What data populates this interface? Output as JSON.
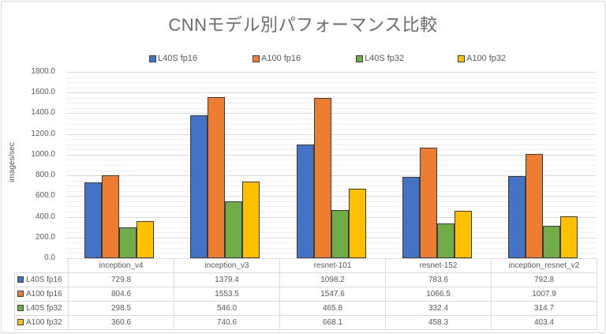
{
  "chart_data": {
    "type": "bar",
    "title": "CNNモデル別パフォーマンス比較",
    "xlabel": "",
    "ylabel": "images/sec",
    "ylim": [
      0,
      1800
    ],
    "yticks": [
      "0.0",
      "200.0",
      "400.0",
      "600.0",
      "800.0",
      "1000.0",
      "1200.0",
      "1400.0",
      "1600.0",
      "1800.0"
    ],
    "grid": true,
    "legend_position": "top",
    "data_table": true,
    "categories": [
      "inception_v4",
      "inception_v3",
      "resnet-101",
      "resnet-152",
      "inception_resnet_v2"
    ],
    "series": [
      {
        "name": "L40S fp16",
        "color": "#4472c4",
        "values": [
          729.8,
          1379.4,
          1098.2,
          783.6,
          792.8
        ],
        "labels": [
          "729.8",
          "1379.4",
          "1098.2",
          "783.6",
          "792.8"
        ]
      },
      {
        "name": "A100 fp16",
        "color": "#ed7d31",
        "values": [
          804.6,
          1553.5,
          1547.6,
          1066.5,
          1007.9
        ],
        "labels": [
          "804.6",
          "1553.5",
          "1547.6",
          "1066.5",
          "1007.9"
        ]
      },
      {
        "name": "L40S fp32",
        "color": "#70ad47",
        "values": [
          298.5,
          546.0,
          465.8,
          332.4,
          314.7
        ],
        "labels": [
          "298.5",
          "546.0",
          "465.8",
          "332.4",
          "314.7"
        ]
      },
      {
        "name": "A100 fp32",
        "color": "#ffc000",
        "values": [
          360.6,
          740.6,
          668.1,
          458.3,
          403.4
        ],
        "labels": [
          "360.6",
          "740.6",
          "668.1",
          "458.3",
          "403.4"
        ]
      }
    ]
  }
}
